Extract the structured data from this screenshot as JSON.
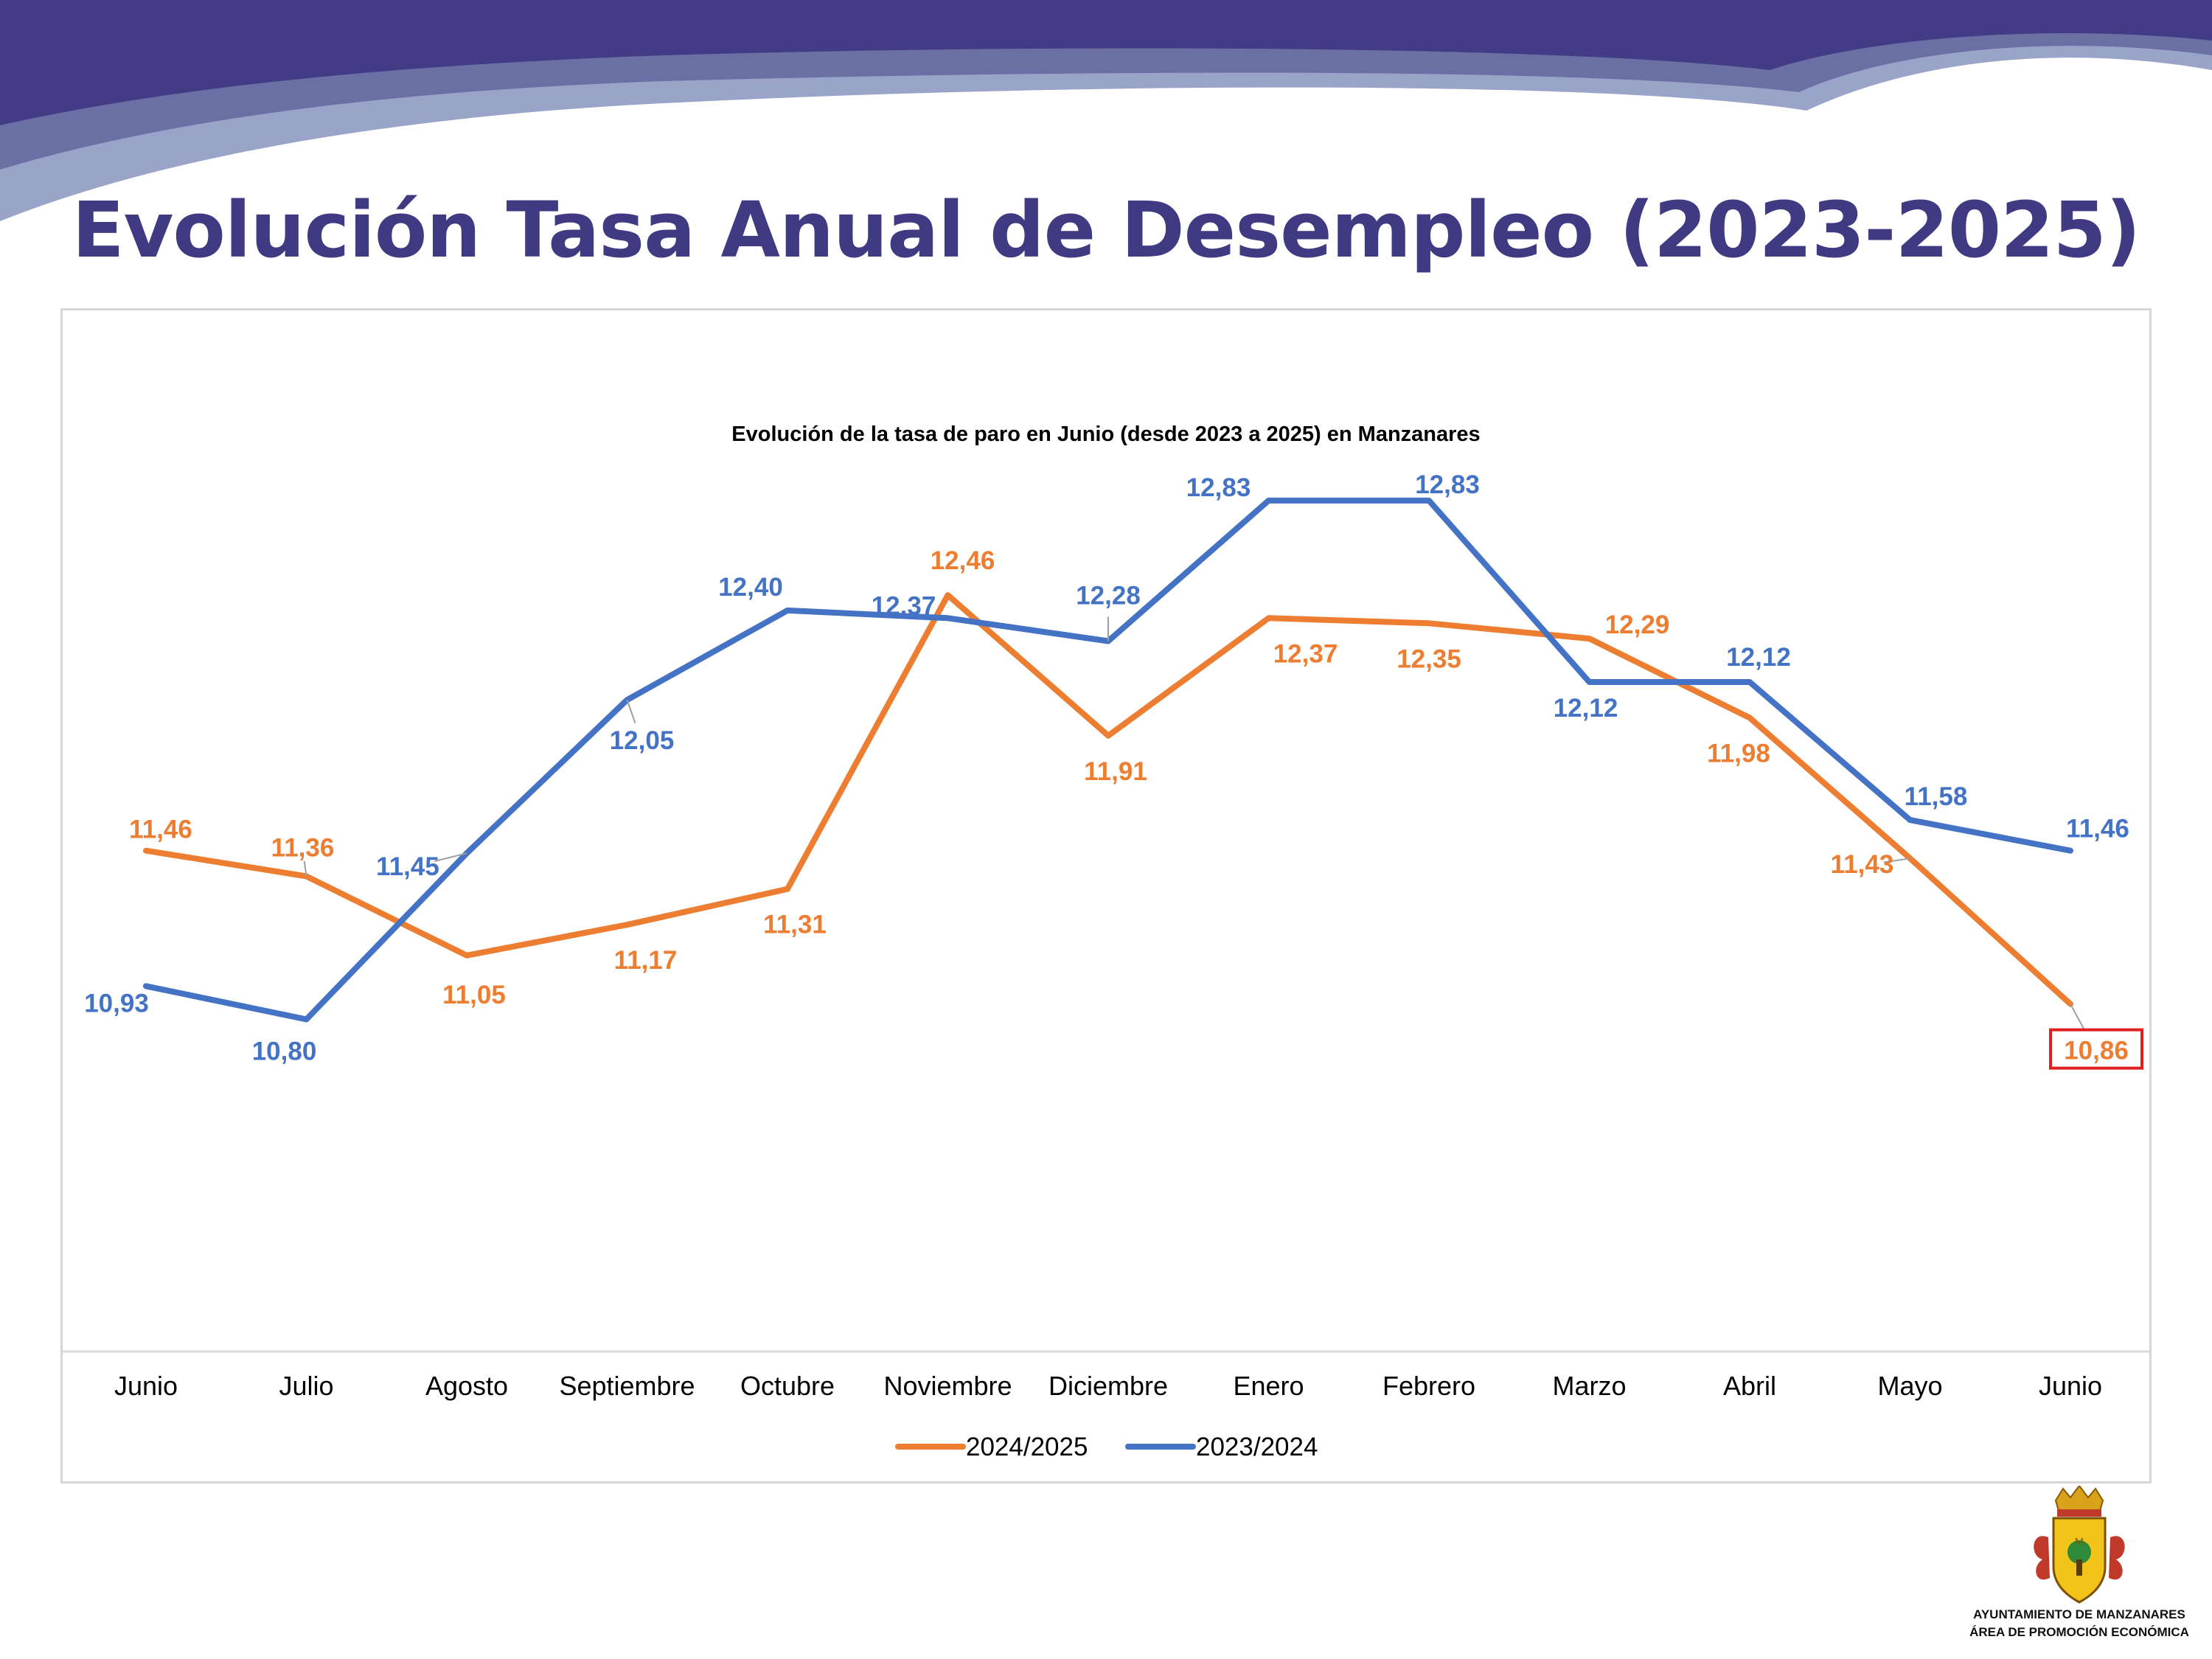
{
  "slide": {
    "title": "Evolución Tasa Anual de Desempleo (2023-2025)"
  },
  "colors": {
    "banner_dark": "#433b86",
    "banner_mid": "#6a6fa4",
    "banner_light": "#9aa4c8",
    "title": "#3f3a82",
    "series_2024_2025": "#ed7d31",
    "series_2023_2024": "#4472c4",
    "highlight_box": "#e02020"
  },
  "logo": {
    "icon": "coat-of-arms-icon",
    "line1": "AYUNTAMIENTO DE MANZANARES",
    "line2": "ÁREA DE PROMOCIÓN ECONÓMICA"
  },
  "chart_data": {
    "type": "line",
    "title": "Evolución de la tasa de paro en Junio (desde 2023 a  2025) en Manzanares",
    "categories": [
      "Junio",
      "Julio",
      "Agosto",
      "Septiembre",
      "Octubre",
      "Noviembre",
      "Diciembre",
      "Enero",
      "Febrero",
      "Marzo",
      "Abril",
      "Mayo",
      "Junio"
    ],
    "ylim": [
      9.5,
      13.0
    ],
    "legend_position": "bottom",
    "grid": false,
    "series": [
      {
        "name": "2024/2025",
        "color": "#ed7d31",
        "values": [
          11.46,
          11.36,
          11.05,
          11.17,
          11.31,
          12.46,
          11.91,
          12.37,
          12.35,
          12.29,
          11.98,
          11.43,
          10.86
        ],
        "labels": [
          "11,46",
          "11,36",
          "11,05",
          "11,17",
          "11,31",
          "12,46",
          "11,91",
          "12,37",
          "12,35",
          "12,29",
          "11,98",
          "11,43",
          "10,86"
        ],
        "highlighted_index": 12
      },
      {
        "name": "2023/2024",
        "color": "#4472c4",
        "values": [
          10.93,
          10.8,
          11.45,
          12.05,
          12.4,
          12.37,
          12.28,
          12.83,
          12.83,
          12.12,
          12.12,
          11.58,
          11.46
        ],
        "labels": [
          "10,93",
          "10,80",
          "11,45",
          "12,05",
          "12,40",
          "12,37",
          "12,28",
          "12,83",
          "12,83",
          "12,12",
          "12,12",
          "11,58",
          "11,46"
        ]
      }
    ]
  }
}
